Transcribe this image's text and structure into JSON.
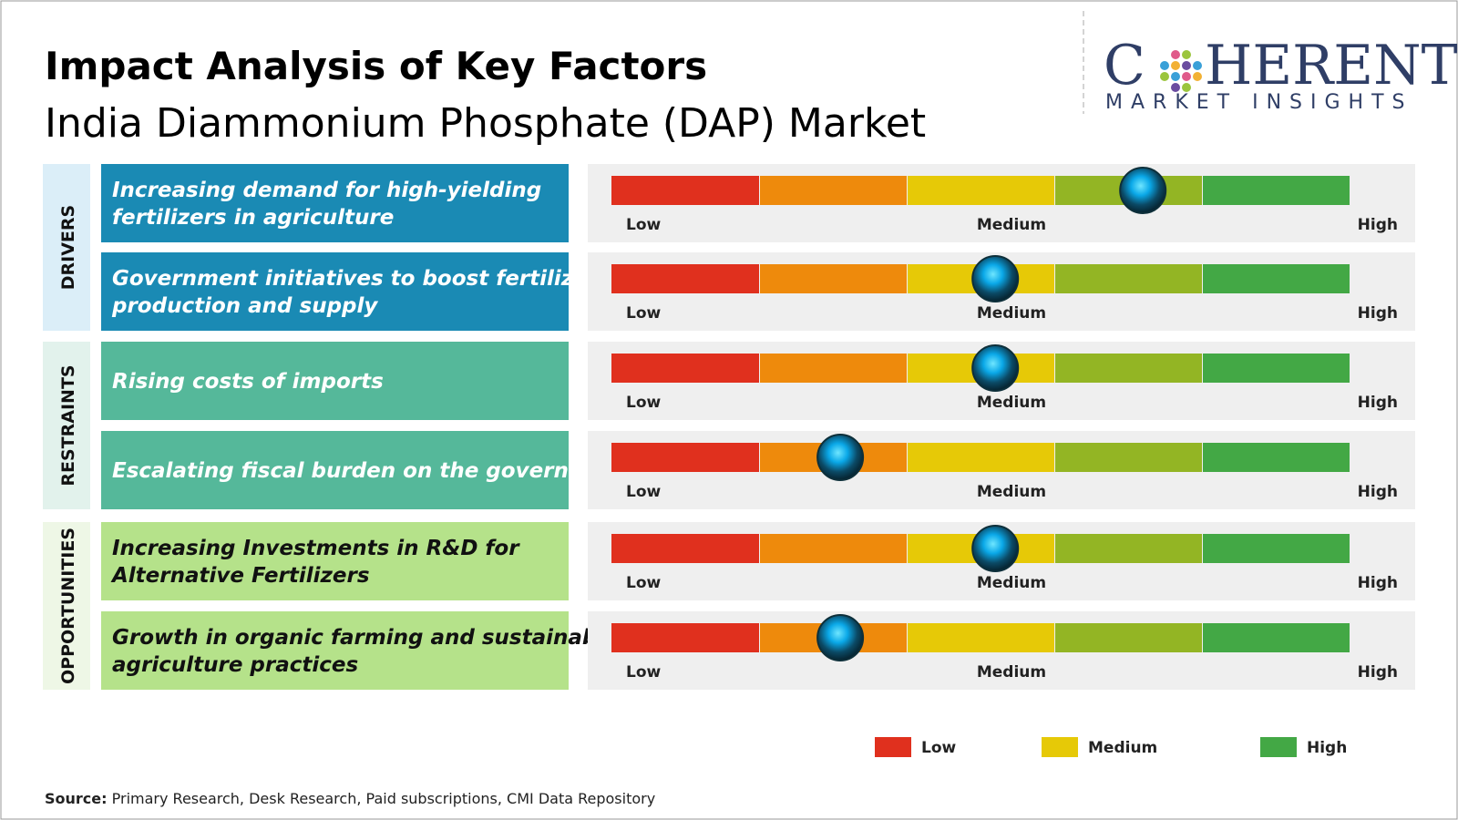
{
  "header": {
    "title": "Impact Analysis of Key Factors",
    "subtitle": "India Diammonium Phosphate (DAP) Market"
  },
  "logo": {
    "letters": [
      "C",
      "HERENT"
    ],
    "tagline": "MARKET INSIGHTS"
  },
  "groups": [
    {
      "label": "DRIVERS",
      "label_bg": "#dbeef8",
      "box": "#1a8ab4",
      "text_color": "#ffffff"
    },
    {
      "label": "RESTRAINTS",
      "label_bg": "#e2f2ec",
      "box": "#55b89a",
      "text_color": "#ffffff"
    },
    {
      "label": "OPPORTUNITIES",
      "label_bg": "#eef7e6",
      "box": "#b5e28a",
      "text_color": "#111111"
    }
  ],
  "factors": [
    {
      "lines": [
        "Increasing demand for high-yielding",
        "fertilizers in agriculture"
      ],
      "group": 0,
      "impact": 0.72
    },
    {
      "lines": [
        "Government initiatives to boost fertilizer",
        "production and supply"
      ],
      "group": 0,
      "impact": 0.52
    },
    {
      "lines": [
        "Rising costs of imports"
      ],
      "group": 1,
      "impact": 0.52
    },
    {
      "lines": [
        "Escalating fiscal burden on the government"
      ],
      "group": 1,
      "impact": 0.31
    },
    {
      "lines": [
        "Increasing Investments in R&D for",
        "Alternative Fertilizers"
      ],
      "group": 2,
      "impact": 0.52
    },
    {
      "lines": [
        "Growth in organic farming and sustainable",
        "agriculture practices"
      ],
      "group": 2,
      "impact": 0.31
    }
  ],
  "scale": {
    "low": "Low",
    "medium": "Medium",
    "high": "High",
    "colors": [
      "#e0301e",
      "#ee8a0c",
      "#e6c907",
      "#93b524",
      "#43a845"
    ]
  },
  "legend": [
    {
      "label": "Low",
      "color": "#e0301e"
    },
    {
      "label": "Medium",
      "color": "#e6c907"
    },
    {
      "label": "High",
      "color": "#43a845"
    }
  ],
  "source": {
    "label": "Source:",
    "text": "Primary Research, Desk Research, Paid subscriptions, CMI Data Repository"
  }
}
